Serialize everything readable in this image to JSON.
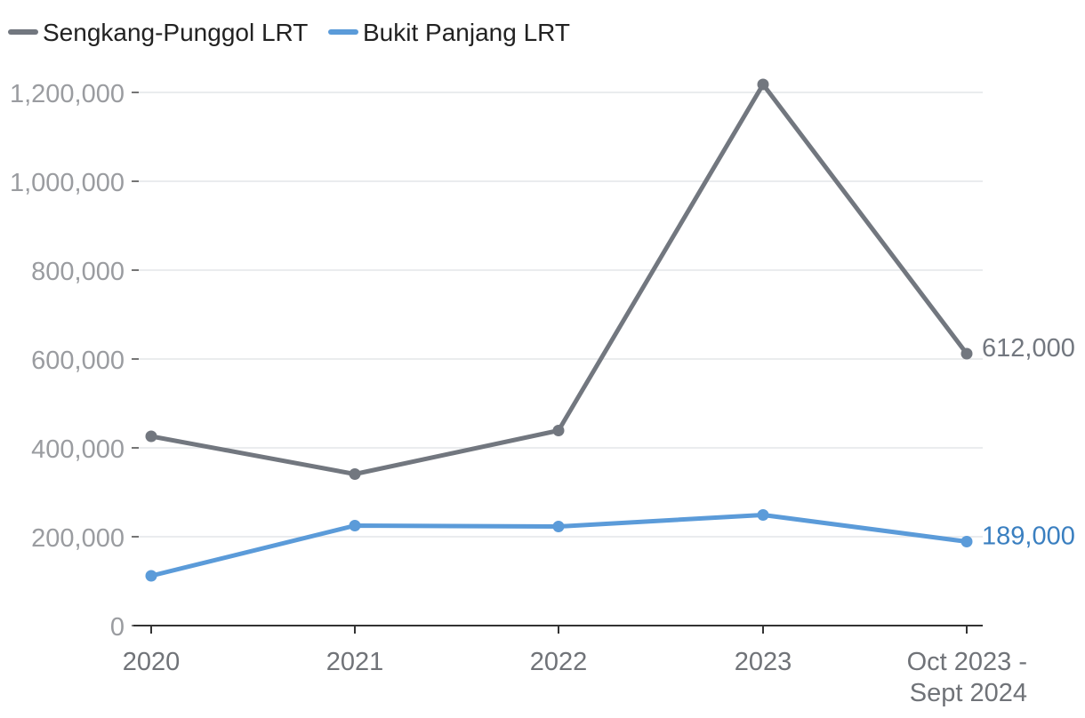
{
  "chart_data": {
    "type": "line",
    "categories": [
      "2020",
      "2021",
      "2022",
      "2023",
      "Oct 2023 - Sept 2024"
    ],
    "category_lines": [
      [
        "2020"
      ],
      [
        "2021"
      ],
      [
        "2022"
      ],
      [
        "2023"
      ],
      [
        "Oct 2023 -",
        "Sept 2024"
      ]
    ],
    "series": [
      {
        "name": "Sengkang-Punggol LRT",
        "color": "#72777f",
        "values": [
          426000,
          341000,
          439000,
          1218000,
          612000
        ],
        "end_label": "612,000"
      },
      {
        "name": "Bukit Panjang LRT",
        "color": "#5b9bd9",
        "values": [
          112000,
          225000,
          223000,
          249000,
          189000
        ],
        "end_label": "189,000",
        "end_label_color": "#3a7fc0"
      }
    ],
    "yticks": [
      0,
      200000,
      400000,
      600000,
      800000,
      1000000,
      1200000
    ],
    "ytick_labels": [
      "0",
      "200,000",
      "400,000",
      "600,000",
      "800,000",
      "1,000,000",
      "1,200,000"
    ],
    "ylim": [
      0,
      1200000
    ],
    "grid": true,
    "legend_position": "top-left"
  }
}
